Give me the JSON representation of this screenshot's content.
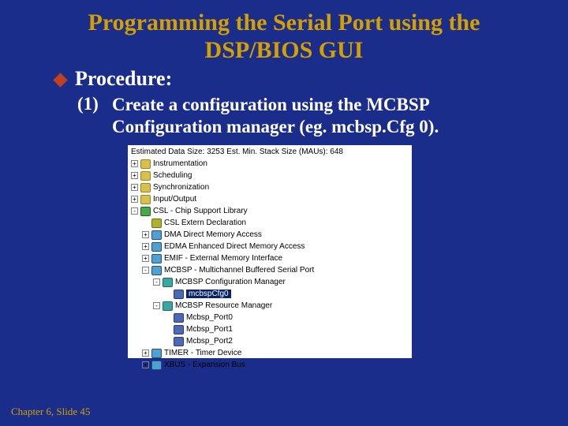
{
  "colors": {
    "background": "#1a2d8a",
    "title": "#d4a000",
    "text": "#ffffff",
    "bullet": "#c04020",
    "panel_bg": "#ffffff",
    "tree_text": "#000000",
    "selected_bg": "#0a246a",
    "selected_fg": "#ffffff"
  },
  "typography": {
    "title_fontsize": 30,
    "subtitle_fontsize": 26,
    "body_fontsize": 23,
    "tree_fontsize": 10,
    "footer_fontsize": 13,
    "serif_family": "Times New Roman",
    "sans_family": "Tahoma"
  },
  "title": "Programming the Serial Port using the DSP/BIOS GUI",
  "subtitle": "Procedure:",
  "step": {
    "num": "(1)",
    "text": "Create a configuration using the MCBSP Configuration manager (eg. mcbsp.Cfg 0)."
  },
  "tree_header": "Estimated Data Size: 3253   Est. Min. Stack Size (MAUs): 648",
  "tree": [
    {
      "indent": 0,
      "expander": "+",
      "icon": "ic-folder",
      "label": "Instrumentation"
    },
    {
      "indent": 0,
      "expander": "+",
      "icon": "ic-folder",
      "label": "Scheduling"
    },
    {
      "indent": 0,
      "expander": "+",
      "icon": "ic-folder",
      "label": "Synchronization"
    },
    {
      "indent": 0,
      "expander": "+",
      "icon": "ic-folder",
      "label": "Input/Output"
    },
    {
      "indent": 0,
      "expander": "-",
      "icon": "ic-green",
      "label": "CSL - Chip Support Library"
    },
    {
      "indent": 1,
      "expander": "",
      "icon": "ic-gear",
      "label": "CSL Extern Declaration"
    },
    {
      "indent": 1,
      "expander": "+",
      "icon": "ic-chip",
      "label": "DMA Direct Memory Access"
    },
    {
      "indent": 1,
      "expander": "+",
      "icon": "ic-chip",
      "label": "EDMA Enhanced Direct Memory Access"
    },
    {
      "indent": 1,
      "expander": "+",
      "icon": "ic-chip",
      "label": "EMIF - External Memory Interface"
    },
    {
      "indent": 1,
      "expander": "-",
      "icon": "ic-chip",
      "label": "MCBSP - Multichannel Buffered Serial Port"
    },
    {
      "indent": 2,
      "expander": "-",
      "icon": "ic-teal",
      "label": "MCBSP Configuration Manager"
    },
    {
      "indent": 3,
      "expander": "",
      "icon": "ic-blue",
      "label": "mcbspCfg0",
      "selected": true
    },
    {
      "indent": 2,
      "expander": "-",
      "icon": "ic-teal",
      "label": "MCBSP Resource Manager"
    },
    {
      "indent": 3,
      "expander": "",
      "icon": "ic-blue",
      "label": "Mcbsp_Port0"
    },
    {
      "indent": 3,
      "expander": "",
      "icon": "ic-blue",
      "label": "Mcbsp_Port1"
    },
    {
      "indent": 3,
      "expander": "",
      "icon": "ic-blue",
      "label": "Mcbsp_Port2"
    },
    {
      "indent": 1,
      "expander": "+",
      "icon": "ic-chip",
      "label": "TIMER - Timer Device"
    },
    {
      "indent": 1,
      "expander": "+",
      "icon": "ic-chip",
      "label": "XBUS - Expansion Bus"
    }
  ],
  "footer": "Chapter 6, Slide 45"
}
